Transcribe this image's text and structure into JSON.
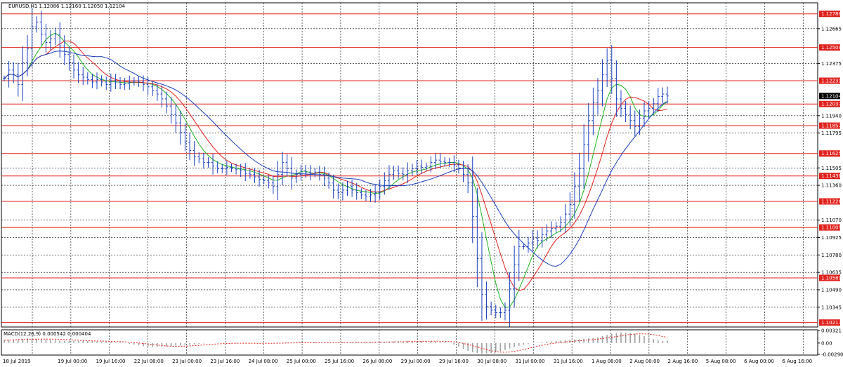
{
  "colors": {
    "background": "#ffffff",
    "grid": "#000000",
    "candle": "#1a3fbf",
    "level_line": "#e0201b",
    "level_label_bg": "#e0201b",
    "ma_fast": "#1fb31f",
    "ma_mid": "#e0201b",
    "ma_slow": "#1a3fbf",
    "macd_hist": "#a0a0a0",
    "macd_signal": "#e0201b",
    "price_label_bg": "#000000"
  },
  "chart_data": [
    {
      "type": "candlestick",
      "header": "EURUSD,H1  1.12086 1.12160 1.12050 1.12104",
      "current_price": "1.12104",
      "grid": true,
      "ylim": [
        1.1018,
        1.1288
      ],
      "y_ticks": [
        {
          "label": "1.12665",
          "value": 1.12665
        },
        {
          "label": "1.12375",
          "value": 1.12375
        },
        {
          "label": "1.11940",
          "value": 1.1194
        },
        {
          "label": "1.11795",
          "value": 1.11795
        },
        {
          "label": "1.11505",
          "value": 1.11505
        },
        {
          "label": "1.11360",
          "value": 1.1136
        },
        {
          "label": "1.11070",
          "value": 1.1107
        },
        {
          "label": "1.10925",
          "value": 1.10925
        },
        {
          "label": "1.10780",
          "value": 1.1078
        },
        {
          "label": "1.10635",
          "value": 1.10635
        },
        {
          "label": "1.10490",
          "value": 1.1049
        },
        {
          "label": "1.10345",
          "value": 1.10345
        }
      ],
      "levels": [
        {
          "label": "1.12788",
          "value": 1.12788
        },
        {
          "label": "1.12508",
          "value": 1.12508
        },
        {
          "label": "1.12231",
          "value": 1.12231
        },
        {
          "label": "1.12037",
          "value": 1.12037
        },
        {
          "label": "1.11857",
          "value": 1.11857
        },
        {
          "label": "1.11625",
          "value": 1.11625
        },
        {
          "label": "1.11438",
          "value": 1.11438
        },
        {
          "label": "1.11226",
          "value": 1.11226
        },
        {
          "label": "1.11009",
          "value": 1.11009
        },
        {
          "label": "1.10589",
          "value": 1.10589
        },
        {
          "label": "1.10217",
          "value": 1.10217
        }
      ],
      "x_labels": [
        "18 Jul 2019",
        "19 Jul 00:00",
        "19 Jul 16:00",
        "22 Jul 08:00",
        "23 Jul 00:00",
        "23 Jul 16:00",
        "24 Jul 08:00",
        "25 Jul 00:00",
        "25 Jul 16:00",
        "26 Jul 08:00",
        "29 Jul 00:00",
        "29 Jul 16:00",
        "30 Jul 08:00",
        "31 Jul 00:00",
        "31 Jul 16:00",
        "1 Aug 08:00",
        "2 Aug 00:00",
        "2 Aug 16:00",
        "5 Aug 08:00",
        "6 Aug 00:00",
        "6 Aug 16:00"
      ],
      "series": [
        {
          "close": [
            1.1225,
            1.1232,
            1.1228,
            1.122,
            1.1238,
            1.125,
            1.1268,
            1.1272,
            1.1262,
            1.1255,
            1.1258,
            1.1262,
            1.1252,
            1.1245,
            1.1238,
            1.1232,
            1.1228,
            1.1226,
            1.1224,
            1.1222,
            1.1224,
            1.1222,
            1.122,
            1.1223,
            1.1222,
            1.122,
            1.1221,
            1.1222,
            1.1223,
            1.1222,
            1.122,
            1.1218,
            1.1215,
            1.1212,
            1.1208,
            1.1202,
            1.1195,
            1.1188,
            1.118,
            1.1172,
            1.1165,
            1.116,
            1.1158,
            1.1155,
            1.1155,
            1.1152,
            1.115,
            1.115,
            1.1151,
            1.115,
            1.1149,
            1.1148,
            1.1146,
            1.1145,
            1.1143,
            1.1141,
            1.114,
            1.1138,
            1.1135,
            1.1145,
            1.1155,
            1.115,
            1.1142,
            1.1145,
            1.1148,
            1.1147,
            1.1146,
            1.1147,
            1.1145,
            1.1142,
            1.1138,
            1.1132,
            1.113,
            1.1132,
            1.1135,
            1.1132,
            1.113,
            1.1128,
            1.1127,
            1.1128,
            1.113,
            1.1135,
            1.114,
            1.1145,
            1.1148,
            1.1146,
            1.1145,
            1.1148,
            1.115,
            1.1152,
            1.1151,
            1.1152,
            1.1155,
            1.1157,
            1.1156,
            1.1155,
            1.1155,
            1.1153,
            1.115,
            1.1145,
            1.1138,
            1.111,
            1.1075,
            1.1045,
            1.1035,
            1.1032,
            1.103,
            1.103,
            1.1032,
            1.105,
            1.107,
            1.1085,
            1.1085,
            1.1088,
            1.1092,
            1.109,
            1.1095,
            1.1098,
            1.11,
            1.1102,
            1.1105,
            1.1112,
            1.112,
            1.1135,
            1.115,
            1.117,
            1.119,
            1.1205,
            1.1215,
            1.1228,
            1.124,
            1.1225,
            1.1208,
            1.12,
            1.1195,
            1.119,
            1.1185,
            1.1192,
            1.1198,
            1.12,
            1.1204,
            1.121,
            1.1212,
            1.12104
          ]
        }
      ]
    },
    {
      "type": "bar",
      "title": "MACD(12,26,9) 0.000542 0.000404",
      "ylim": [
        -0.0031,
        0.0034
      ],
      "y_ticks": [
        {
          "label": "0.00321",
          "value": 0.00321
        },
        {
          "label": "0.00",
          "value": 0.0
        },
        {
          "label": "-0.002908",
          "value": -0.002908
        }
      ],
      "series": [
        {
          "histogram": [
            0.0007,
            0.0008,
            0.0009,
            0.001,
            0.0011,
            0.0012,
            0.0012,
            0.0011,
            0.001,
            0.0009,
            0.0008,
            0.0007,
            0.0006,
            0.0006,
            0.0006,
            0.0006,
            0.0005,
            0.0005,
            0.0005,
            0.0004,
            0.0004,
            0.0004,
            0.0003,
            0.0003,
            0.0002,
            0.0001,
            0.0,
            -0.0002,
            -0.0004,
            -0.0006,
            -0.0008,
            -0.0009,
            -0.001,
            -0.001,
            -0.0009,
            -0.0009,
            -0.0008,
            -0.0007,
            -0.0006,
            -0.0005,
            -0.0004,
            -0.0003,
            -0.0002,
            -0.0001,
            0.0,
            0.0,
            0.0,
            0.0,
            0.0,
            -0.0001,
            -0.0001,
            -0.0001,
            -0.0001,
            -0.0001,
            -0.0001,
            -0.0001,
            0.0,
            0.0,
            0.0,
            0.0001,
            0.0001,
            0.0001,
            0.0001,
            0.0001,
            0.0001,
            0.0001,
            0.0002,
            0.0002,
            0.0001,
            0.0001,
            0.0001,
            0.0001,
            0.0001,
            0.0002,
            0.0002,
            0.0002,
            0.0002,
            0.0002,
            0.0002,
            0.0003,
            0.0003,
            0.0003,
            0.0003,
            0.0004,
            0.0004,
            0.0004,
            0.0004,
            0.0005,
            0.0005,
            0.0005,
            0.0005,
            0.0005,
            0.0005,
            0.0004,
            0.0003,
            0.0002,
            0.0001,
            -0.0004,
            -0.0009,
            -0.0015,
            -0.002,
            -0.0024,
            -0.0026,
            -0.0027,
            -0.0027,
            -0.0026,
            -0.0024,
            -0.0021,
            -0.0018,
            -0.0014,
            -0.001,
            -0.0007,
            -0.0004,
            -0.0002,
            0.0,
            0.0001,
            0.0002,
            0.0003,
            0.0004,
            0.0005,
            0.0006,
            0.0007,
            0.0008,
            0.0009,
            0.001,
            0.0011,
            0.0012,
            0.0013,
            0.0015,
            0.0018,
            0.0021,
            0.0024,
            0.0026,
            0.0027,
            0.0027,
            0.0026,
            0.0024,
            0.0021,
            0.0018,
            0.0014,
            0.001,
            0.0007,
            0.0005,
            0.000542
          ]
        }
      ]
    }
  ]
}
